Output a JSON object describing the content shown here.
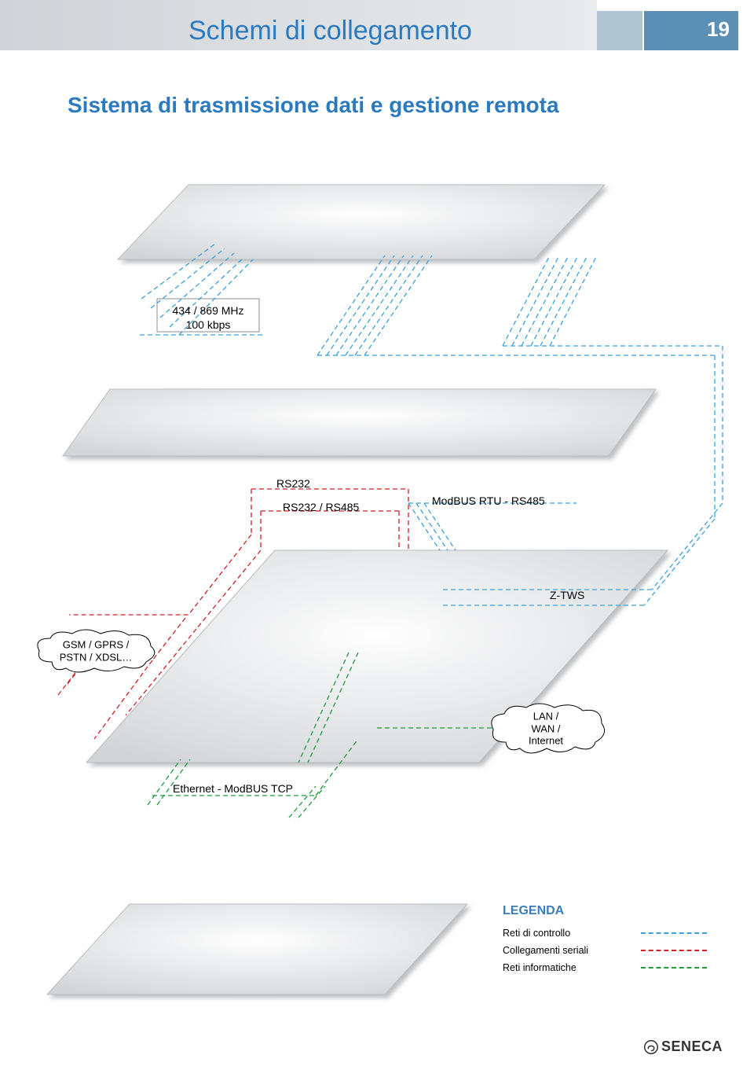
{
  "header": {
    "title": "Schemi di collegamento",
    "page_number": "19"
  },
  "subtitle": "Sistema di trasmissione dati e gestione remota",
  "labels": {
    "radio": "434 / 869 MHz\n100 kbps",
    "rs232": "RS232",
    "rs232_485": "RS232 / RS485",
    "modbus_rtu": "ModBUS RTU - RS485",
    "ztws": "Z-TWS",
    "ethernet": "Ethernet - ModBUS TCP"
  },
  "clouds": {
    "gsm": "GSM / GPRS /\nPSTN / XDSL…",
    "lan": "LAN /\nWAN /\nInternet"
  },
  "legend": {
    "title": "LEGENDA",
    "items": [
      {
        "label": "Reti di controllo",
        "color": "#3aa0e0",
        "dash": "6 4"
      },
      {
        "label": "Collegamenti seriali",
        "color": "#d02028",
        "dash": "6 4"
      },
      {
        "label": "Reti informatiche",
        "color": "#1f9b3b",
        "dash": "6 4"
      }
    ]
  },
  "colors": {
    "plane_fill": "url(#planeGrad)",
    "plane_stroke": "#b8bcc0",
    "blue": "#3aa0e0",
    "red": "#d02028",
    "green": "#1f9b3b",
    "header_blue": "#5b8fb6",
    "header_grey1": "#d0d4d8",
    "header_grey2": "#e8eaec",
    "title_text": "#2b7ac0"
  },
  "footer_brand": "SENECA"
}
